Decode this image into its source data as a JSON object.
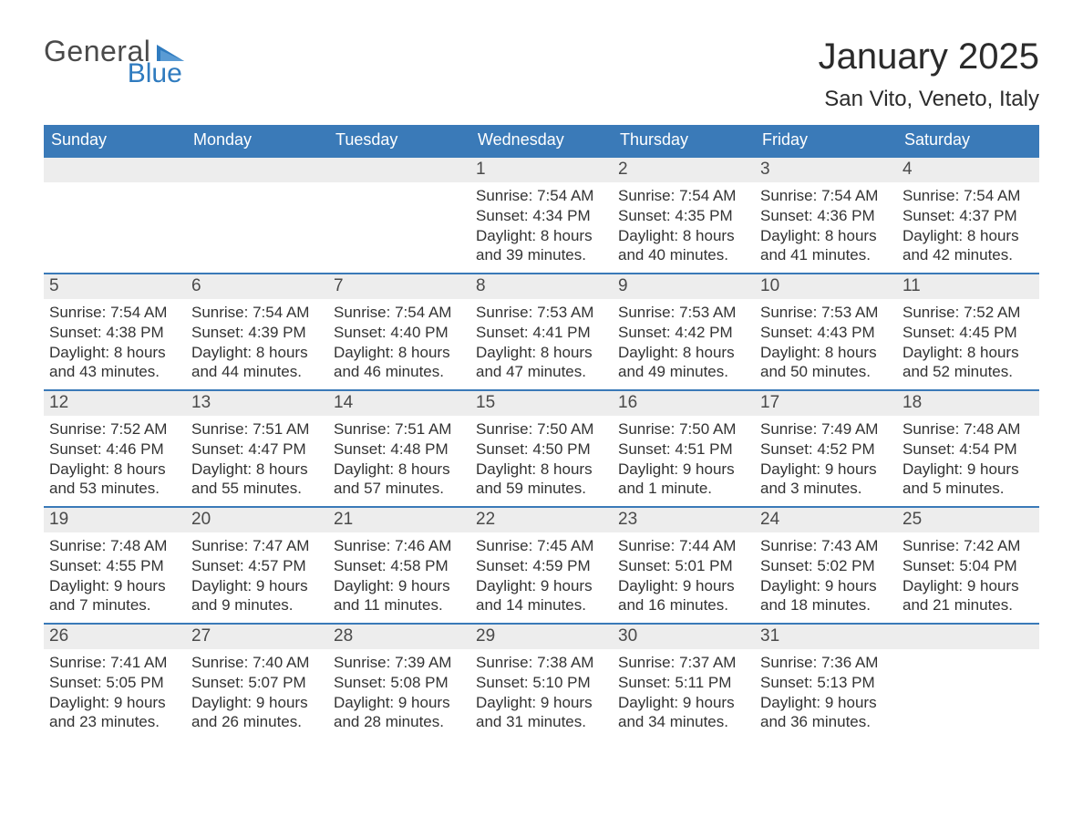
{
  "logo": {
    "word1": "General",
    "word2": "Blue",
    "triangle_color": "#2f7bbf"
  },
  "title": "January 2025",
  "location": "San Vito, Veneto, Italy",
  "colors": {
    "header_bg": "#3a7ab8",
    "header_text": "#ffffff",
    "daynum_bg": "#ededed",
    "daynum_text": "#4a4a4a",
    "body_text": "#333333",
    "week_border": "#3a7ab8",
    "page_bg": "#ffffff"
  },
  "fonts": {
    "title_size_pt": 30,
    "location_size_pt": 18,
    "dow_size_pt": 13,
    "body_size_pt": 12
  },
  "days_of_week": [
    "Sunday",
    "Monday",
    "Tuesday",
    "Wednesday",
    "Thursday",
    "Friday",
    "Saturday"
  ],
  "weeks": [
    [
      null,
      null,
      null,
      {
        "n": "1",
        "sunrise": "Sunrise: 7:54 AM",
        "sunset": "Sunset: 4:34 PM",
        "daylight1": "Daylight: 8 hours",
        "daylight2": "and 39 minutes."
      },
      {
        "n": "2",
        "sunrise": "Sunrise: 7:54 AM",
        "sunset": "Sunset: 4:35 PM",
        "daylight1": "Daylight: 8 hours",
        "daylight2": "and 40 minutes."
      },
      {
        "n": "3",
        "sunrise": "Sunrise: 7:54 AM",
        "sunset": "Sunset: 4:36 PM",
        "daylight1": "Daylight: 8 hours",
        "daylight2": "and 41 minutes."
      },
      {
        "n": "4",
        "sunrise": "Sunrise: 7:54 AM",
        "sunset": "Sunset: 4:37 PM",
        "daylight1": "Daylight: 8 hours",
        "daylight2": "and 42 minutes."
      }
    ],
    [
      {
        "n": "5",
        "sunrise": "Sunrise: 7:54 AM",
        "sunset": "Sunset: 4:38 PM",
        "daylight1": "Daylight: 8 hours",
        "daylight2": "and 43 minutes."
      },
      {
        "n": "6",
        "sunrise": "Sunrise: 7:54 AM",
        "sunset": "Sunset: 4:39 PM",
        "daylight1": "Daylight: 8 hours",
        "daylight2": "and 44 minutes."
      },
      {
        "n": "7",
        "sunrise": "Sunrise: 7:54 AM",
        "sunset": "Sunset: 4:40 PM",
        "daylight1": "Daylight: 8 hours",
        "daylight2": "and 46 minutes."
      },
      {
        "n": "8",
        "sunrise": "Sunrise: 7:53 AM",
        "sunset": "Sunset: 4:41 PM",
        "daylight1": "Daylight: 8 hours",
        "daylight2": "and 47 minutes."
      },
      {
        "n": "9",
        "sunrise": "Sunrise: 7:53 AM",
        "sunset": "Sunset: 4:42 PM",
        "daylight1": "Daylight: 8 hours",
        "daylight2": "and 49 minutes."
      },
      {
        "n": "10",
        "sunrise": "Sunrise: 7:53 AM",
        "sunset": "Sunset: 4:43 PM",
        "daylight1": "Daylight: 8 hours",
        "daylight2": "and 50 minutes."
      },
      {
        "n": "11",
        "sunrise": "Sunrise: 7:52 AM",
        "sunset": "Sunset: 4:45 PM",
        "daylight1": "Daylight: 8 hours",
        "daylight2": "and 52 minutes."
      }
    ],
    [
      {
        "n": "12",
        "sunrise": "Sunrise: 7:52 AM",
        "sunset": "Sunset: 4:46 PM",
        "daylight1": "Daylight: 8 hours",
        "daylight2": "and 53 minutes."
      },
      {
        "n": "13",
        "sunrise": "Sunrise: 7:51 AM",
        "sunset": "Sunset: 4:47 PM",
        "daylight1": "Daylight: 8 hours",
        "daylight2": "and 55 minutes."
      },
      {
        "n": "14",
        "sunrise": "Sunrise: 7:51 AM",
        "sunset": "Sunset: 4:48 PM",
        "daylight1": "Daylight: 8 hours",
        "daylight2": "and 57 minutes."
      },
      {
        "n": "15",
        "sunrise": "Sunrise: 7:50 AM",
        "sunset": "Sunset: 4:50 PM",
        "daylight1": "Daylight: 8 hours",
        "daylight2": "and 59 minutes."
      },
      {
        "n": "16",
        "sunrise": "Sunrise: 7:50 AM",
        "sunset": "Sunset: 4:51 PM",
        "daylight1": "Daylight: 9 hours",
        "daylight2": "and 1 minute."
      },
      {
        "n": "17",
        "sunrise": "Sunrise: 7:49 AM",
        "sunset": "Sunset: 4:52 PM",
        "daylight1": "Daylight: 9 hours",
        "daylight2": "and 3 minutes."
      },
      {
        "n": "18",
        "sunrise": "Sunrise: 7:48 AM",
        "sunset": "Sunset: 4:54 PM",
        "daylight1": "Daylight: 9 hours",
        "daylight2": "and 5 minutes."
      }
    ],
    [
      {
        "n": "19",
        "sunrise": "Sunrise: 7:48 AM",
        "sunset": "Sunset: 4:55 PM",
        "daylight1": "Daylight: 9 hours",
        "daylight2": "and 7 minutes."
      },
      {
        "n": "20",
        "sunrise": "Sunrise: 7:47 AM",
        "sunset": "Sunset: 4:57 PM",
        "daylight1": "Daylight: 9 hours",
        "daylight2": "and 9 minutes."
      },
      {
        "n": "21",
        "sunrise": "Sunrise: 7:46 AM",
        "sunset": "Sunset: 4:58 PM",
        "daylight1": "Daylight: 9 hours",
        "daylight2": "and 11 minutes."
      },
      {
        "n": "22",
        "sunrise": "Sunrise: 7:45 AM",
        "sunset": "Sunset: 4:59 PM",
        "daylight1": "Daylight: 9 hours",
        "daylight2": "and 14 minutes."
      },
      {
        "n": "23",
        "sunrise": "Sunrise: 7:44 AM",
        "sunset": "Sunset: 5:01 PM",
        "daylight1": "Daylight: 9 hours",
        "daylight2": "and 16 minutes."
      },
      {
        "n": "24",
        "sunrise": "Sunrise: 7:43 AM",
        "sunset": "Sunset: 5:02 PM",
        "daylight1": "Daylight: 9 hours",
        "daylight2": "and 18 minutes."
      },
      {
        "n": "25",
        "sunrise": "Sunrise: 7:42 AM",
        "sunset": "Sunset: 5:04 PM",
        "daylight1": "Daylight: 9 hours",
        "daylight2": "and 21 minutes."
      }
    ],
    [
      {
        "n": "26",
        "sunrise": "Sunrise: 7:41 AM",
        "sunset": "Sunset: 5:05 PM",
        "daylight1": "Daylight: 9 hours",
        "daylight2": "and 23 minutes."
      },
      {
        "n": "27",
        "sunrise": "Sunrise: 7:40 AM",
        "sunset": "Sunset: 5:07 PM",
        "daylight1": "Daylight: 9 hours",
        "daylight2": "and 26 minutes."
      },
      {
        "n": "28",
        "sunrise": "Sunrise: 7:39 AM",
        "sunset": "Sunset: 5:08 PM",
        "daylight1": "Daylight: 9 hours",
        "daylight2": "and 28 minutes."
      },
      {
        "n": "29",
        "sunrise": "Sunrise: 7:38 AM",
        "sunset": "Sunset: 5:10 PM",
        "daylight1": "Daylight: 9 hours",
        "daylight2": "and 31 minutes."
      },
      {
        "n": "30",
        "sunrise": "Sunrise: 7:37 AM",
        "sunset": "Sunset: 5:11 PM",
        "daylight1": "Daylight: 9 hours",
        "daylight2": "and 34 minutes."
      },
      {
        "n": "31",
        "sunrise": "Sunrise: 7:36 AM",
        "sunset": "Sunset: 5:13 PM",
        "daylight1": "Daylight: 9 hours",
        "daylight2": "and 36 minutes."
      },
      null
    ]
  ]
}
